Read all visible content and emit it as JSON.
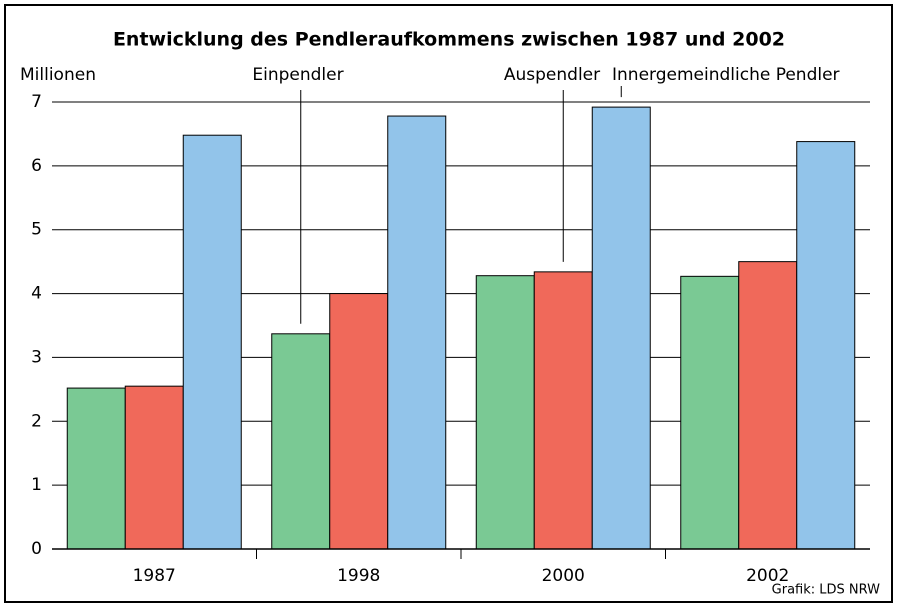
{
  "chart_data": {
    "type": "bar",
    "title": "Entwicklung des Pendleraufkommens zwischen 1987 und 2002",
    "y_label": "Millionen",
    "source": "Grafik: LDS NRW",
    "categories": [
      "1987",
      "1998",
      "2000",
      "2002"
    ],
    "series": [
      {
        "name": "Einpendler",
        "color": "#7ac994",
        "values": [
          2.52,
          3.37,
          4.28,
          4.27
        ]
      },
      {
        "name": "Auspendler",
        "color": "#f0695a",
        "values": [
          2.55,
          4.0,
          4.34,
          4.5
        ]
      },
      {
        "name": "Innergemeindliche Pendler",
        "color": "#92c4ea",
        "values": [
          6.48,
          6.78,
          6.92,
          6.38
        ]
      }
    ],
    "ylim": [
      0,
      7
    ],
    "yticks": [
      0,
      1,
      2,
      3,
      4,
      5,
      6,
      7
    ],
    "grid": true
  }
}
